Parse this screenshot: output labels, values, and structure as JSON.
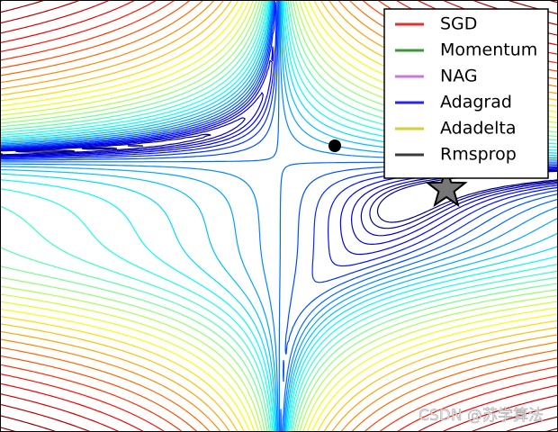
{
  "chart_data": {
    "type": "contour",
    "colormap": "jet",
    "log_scale": true,
    "xlim": [
      -5,
      5
    ],
    "ylim": [
      -4,
      4
    ],
    "levels": [
      1,
      1.39,
      1.93,
      2.68,
      3.73,
      5.18,
      7.2,
      10,
      13.9,
      19.3,
      26.8,
      37.3,
      51.8,
      72,
      100,
      139,
      193,
      268,
      373,
      518,
      720,
      1000,
      1390,
      1930,
      2680,
      3730,
      5180,
      7200,
      10000,
      13900,
      19300,
      26800,
      37300,
      51800,
      72000,
      100000
    ],
    "start": {
      "x": 1,
      "y": 1.3
    },
    "minimum": {
      "x": 3,
      "y": 0.5
    },
    "legend": "upper right",
    "series": [
      {
        "name": "SGD",
        "color": "#e03232"
      },
      {
        "name": "Momentum",
        "color": "#3c963c"
      },
      {
        "name": "NAG",
        "color": "#c878dc"
      },
      {
        "name": "Adagrad",
        "color": "#2828dc"
      },
      {
        "name": "Adadelta",
        "color": "#d2d232"
      },
      {
        "name": "Rmsprop",
        "color": "#3a3a3a"
      }
    ],
    "watermark": "CSDN @苏学算法"
  }
}
